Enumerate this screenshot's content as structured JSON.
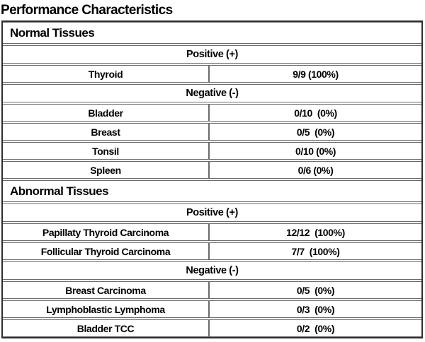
{
  "page_title": "Performance Characteristics",
  "colors": {
    "background": "#ffffff",
    "text": "#000000",
    "border_outer": "#2e2e2e",
    "border_inner": "#6b6b6b"
  },
  "table": {
    "sections": [
      {
        "title": "Normal Tissues",
        "groups": [
          {
            "header": "Positive (+)",
            "rows": [
              {
                "label": "Thyroid",
                "value": "9/9 (100%)"
              }
            ]
          },
          {
            "header": "Negative (-)",
            "rows": [
              {
                "label": "Bladder",
                "value": "0/10  (0%)"
              },
              {
                "label": "Breast",
                "value": "0/5  (0%)"
              },
              {
                "label": "Tonsil",
                "value": "0/10 (0%)"
              },
              {
                "label": "Spleen",
                "value": "0/6 (0%)"
              }
            ]
          }
        ]
      },
      {
        "title": "Abnormal Tissues",
        "groups": [
          {
            "header": "Positive (+)",
            "rows": [
              {
                "label": "Papillaty Thyroid Carcinoma",
                "value": "12/12  (100%)"
              },
              {
                "label": "Follicular Thyroid Carcinoma",
                "value": "7/7  (100%)"
              }
            ]
          },
          {
            "header": "Negative (-)",
            "rows": [
              {
                "label": "Breast Carcinoma",
                "value": "0/5  (0%)"
              },
              {
                "label": "Lymphoblastic Lymphoma",
                "value": "0/3  (0%)"
              },
              {
                "label": "Bladder TCC",
                "value": "0/2  (0%)"
              }
            ]
          }
        ]
      }
    ]
  }
}
